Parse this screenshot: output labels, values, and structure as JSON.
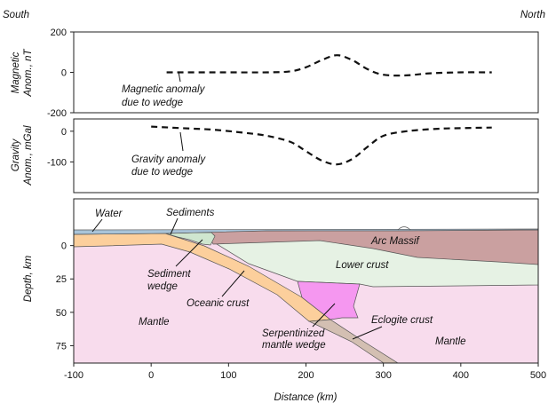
{
  "header": {
    "left": "South",
    "right": "North"
  },
  "colors": {
    "water": "#a9c4d9",
    "sediments": "#cfe6cf",
    "arc_massif": "#caa0a0",
    "lower_crust": "#e6f2e4",
    "mantle": "#f8dced",
    "oceanic_crust": "#fccf9c",
    "serpentinized_wedge": "#f597f0",
    "eclogite_slab": "#d3bfb2",
    "line": "#111111"
  },
  "panels": {
    "magnetic": {
      "ylabel_line1": "Magnetic",
      "ylabel_line2": "Anom., nT",
      "annotation_line1": "Magnetic anomaly",
      "annotation_line2": "due to wedge"
    },
    "gravity": {
      "ylabel_line1": "Gravity",
      "ylabel_line2": "Anom., mGal",
      "annotation_line1": "Gravity anomaly",
      "annotation_line2": "due to wedge"
    },
    "section": {
      "ylabel": "Depth, km",
      "xlabel": "Distance (km)",
      "labels": {
        "water": "Water",
        "sediments": "Sediments",
        "arc_massif": "Arc Massif",
        "lower_crust": "Lower crust",
        "sediment_wedge_line1": "Sediment",
        "sediment_wedge_line2": "wedge",
        "oceanic_crust": "Oceanic crust",
        "mantle_left": "Mantle",
        "mantle_right": "Mantle",
        "eclogite_crust": "Eclogite crust",
        "serpentinized_line1": "Serpentinized",
        "serpentinized_line2": "mantle wedge"
      }
    }
  },
  "chart_data": [
    {
      "type": "line",
      "title": "",
      "xlabel": "",
      "ylabel": "Magnetic Anom., nT",
      "xlim": [
        -100,
        500
      ],
      "ylim": [
        -200,
        200
      ],
      "yticks": [
        "200",
        "0",
        "-200"
      ],
      "ytick_values": [
        200,
        0,
        -200
      ],
      "series": [
        {
          "style": "dashed",
          "x": [
            20,
            60,
            100,
            150,
            180,
            200,
            220,
            240,
            260,
            280,
            300,
            330,
            360,
            400,
            440
          ],
          "y": [
            0,
            0,
            0,
            0,
            5,
            25,
            60,
            85,
            60,
            15,
            -12,
            -15,
            -5,
            0,
            0
          ]
        }
      ]
    },
    {
      "type": "line",
      "title": "",
      "xlabel": "",
      "ylabel": "Gravity Anom., mGal",
      "xlim": [
        -100,
        500
      ],
      "ylim": [
        -200,
        40
      ],
      "yticks": [
        "0",
        "-100"
      ],
      "ytick_values": [
        0,
        -100
      ],
      "series": [
        {
          "style": "dashed",
          "x": [
            0,
            40,
            80,
            120,
            150,
            180,
            200,
            220,
            240,
            260,
            280,
            300,
            330,
            370,
            400,
            440
          ],
          "y": [
            15,
            10,
            5,
            -5,
            -15,
            -35,
            -65,
            -95,
            -108,
            -90,
            -50,
            -15,
            0,
            8,
            10,
            12
          ]
        }
      ]
    },
    {
      "type": "table",
      "title": "",
      "xlabel": "Distance (km)",
      "ylabel": "Depth, km",
      "xlim": [
        -100,
        500
      ],
      "ylim": [
        88,
        -35
      ],
      "xticks": [
        "-100",
        "0",
        "100",
        "200",
        "300",
        "400",
        "500"
      ],
      "xtick_values": [
        -100,
        0,
        100,
        200,
        300,
        400,
        500
      ],
      "yticks": [
        "0",
        "25",
        "50",
        "75"
      ],
      "ytick_values": [
        0,
        25,
        50,
        75
      ]
    }
  ]
}
